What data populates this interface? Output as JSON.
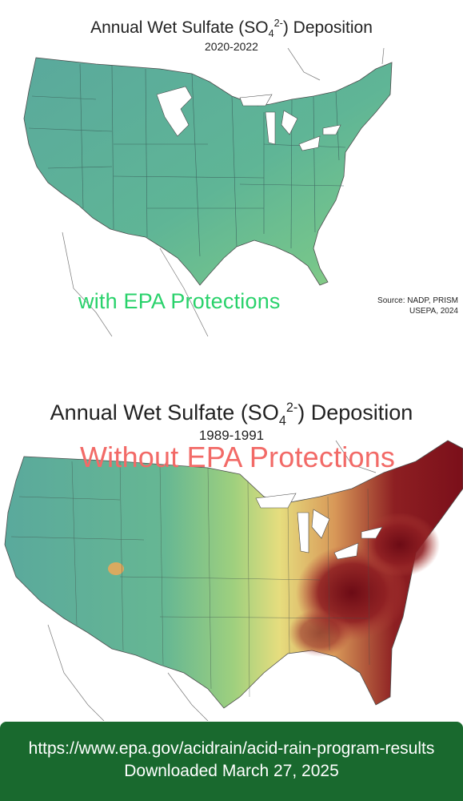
{
  "top_map": {
    "title_prefix": "Annual Wet Sulfate (SO",
    "title_sub": "4",
    "title_sup": "2-",
    "title_suffix": ") Deposition",
    "years": "2020-2022",
    "overlay_text": "with EPA Protections",
    "source_line1": "Source: NADP, PRISM",
    "source_line2": "USEPA, 2024",
    "color_fill": "#5bb59a"
  },
  "bottom_map": {
    "title_prefix": "Annual Wet Sulfate (SO",
    "title_sub": "4",
    "title_sup": "2-",
    "title_suffix": ") Deposition",
    "years": "1989-1991",
    "overlay_text": "Without EPA Protections",
    "colors": {
      "low": "#5bb59a",
      "mid": "#e8d879",
      "high": "#c8613a",
      "max": "#7b0f1a"
    }
  },
  "footer": {
    "url": "https://www.epa.gov/acidrain/acid-rain-program-results",
    "downloaded": "Downloaded March 27, 2025",
    "background": "#19692e"
  }
}
